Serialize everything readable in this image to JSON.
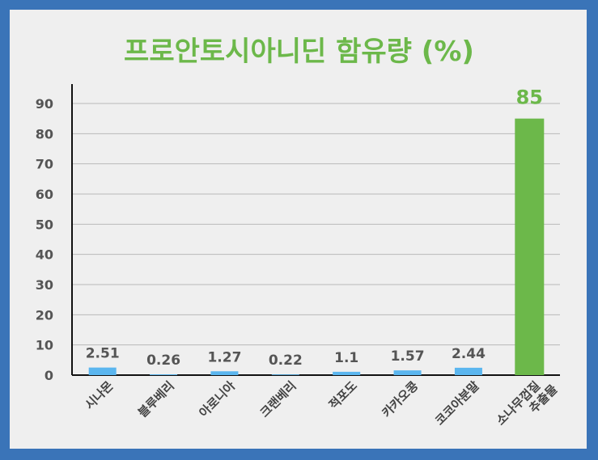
{
  "chart_data": {
    "type": "bar",
    "title": "프로안토시아니딘 함유량 (%)",
    "categories": [
      "시나몬",
      "블루베리",
      "아로니아",
      "크랜베리",
      "적포도",
      "카카오콩",
      "코코아분말",
      "소나무껍질 추출물"
    ],
    "values": [
      2.51,
      0.26,
      1.27,
      0.22,
      1.1,
      1.57,
      2.44,
      85
    ],
    "data_labels": [
      "2.51",
      "0.26",
      "1.27",
      "0.22",
      "1.1",
      "1.57",
      "2.44",
      "85"
    ],
    "ylim": [
      0,
      90
    ],
    "yticks": [
      0,
      10,
      20,
      30,
      40,
      50,
      60,
      70,
      80,
      90
    ],
    "grid": true,
    "colors": {
      "default_bar": "#5bb6ef",
      "highlight_bar": "#6cb84a",
      "highlight_label": "#6cb84a",
      "label": "#555555",
      "background": "#efefef",
      "frame": "#3a74b8"
    },
    "highlight_index": 7
  }
}
